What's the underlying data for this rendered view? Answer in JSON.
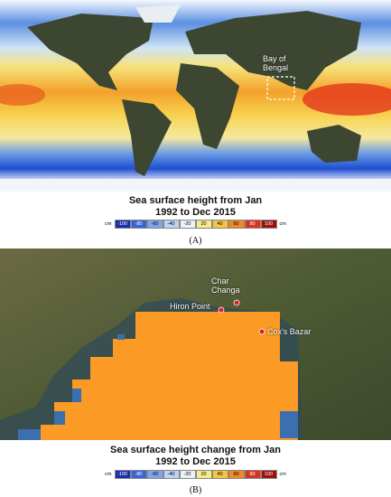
{
  "panel_a": {
    "map_labels": [
      "Bay of Bengal"
    ],
    "caption": "Sea surface height from Jan 1992 to Dec 2015",
    "legend": {
      "unit": "cm",
      "ticks": [
        -100,
        -80,
        -60,
        -40,
        -20,
        20,
        40,
        60,
        80,
        100
      ]
    },
    "panel_label": "(A)"
  },
  "panel_b": {
    "places": [
      "Hiron Point",
      "Char Changa",
      "Cox's Bazar"
    ],
    "caption": "Sea surface height change from Jan 1992 to Dec 2015",
    "legend": {
      "unit": "cm",
      "ticks": [
        -100,
        -80,
        -60,
        -40,
        -20,
        20,
        40,
        60,
        80,
        100
      ]
    },
    "panel_label": "(B)"
  }
}
